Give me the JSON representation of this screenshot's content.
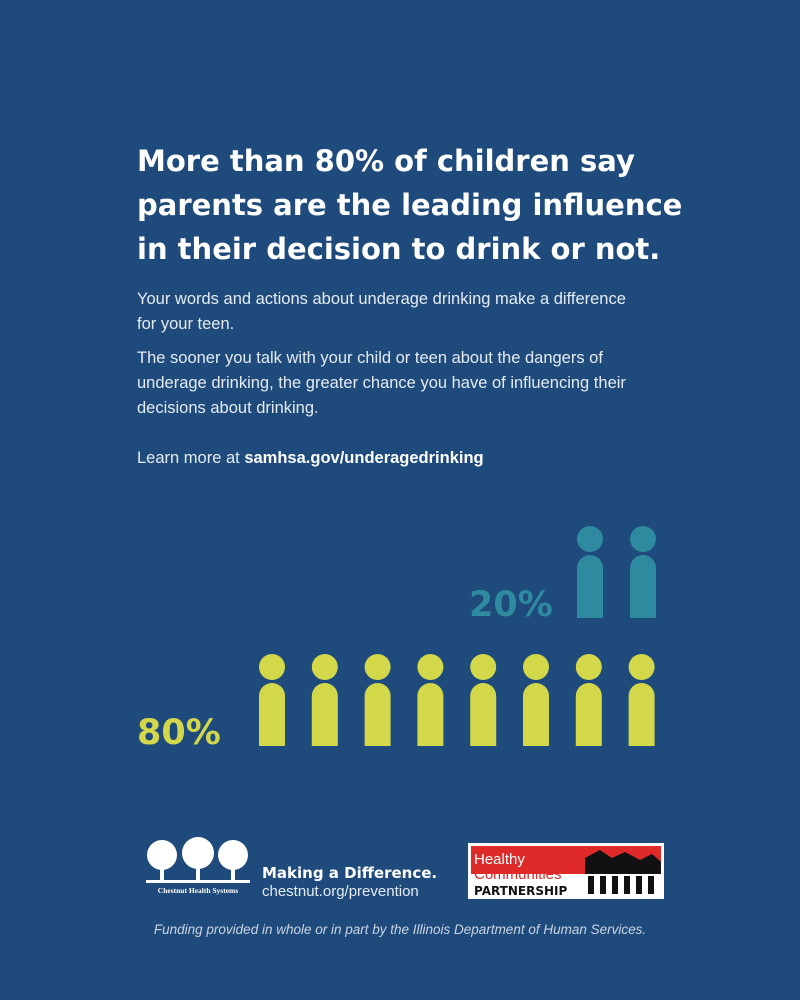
{
  "headline": [
    "More than 80% of children say",
    "parents are the leading influence",
    "in their decision to drink or not."
  ],
  "paragraphs": [
    [
      "Your words and actions about underage drinking make a difference",
      "for your teen."
    ],
    [
      "The sooner you talk with your child or teen about the dangers of",
      "underage drinking, the greater chance you have of influencing their",
      "decisions about drinking."
    ]
  ],
  "learn_more": {
    "prefix": "Learn more at",
    "link": "samhsa.gov/underagedrinking"
  },
  "stats": [
    {
      "label": "20%"
    },
    {
      "label": "80%"
    }
  ],
  "chestnut": {
    "org": "Chestnut Health Systems",
    "tagline": "Making a Difference.",
    "url": "chestnut.org/prevention"
  },
  "partner": {
    "line1": "Healthy",
    "line2": "Communities",
    "line3": "PARTNERSHIP"
  },
  "funding": "Funding provided in whole or in part by the Illinois Department of Human Services."
}
